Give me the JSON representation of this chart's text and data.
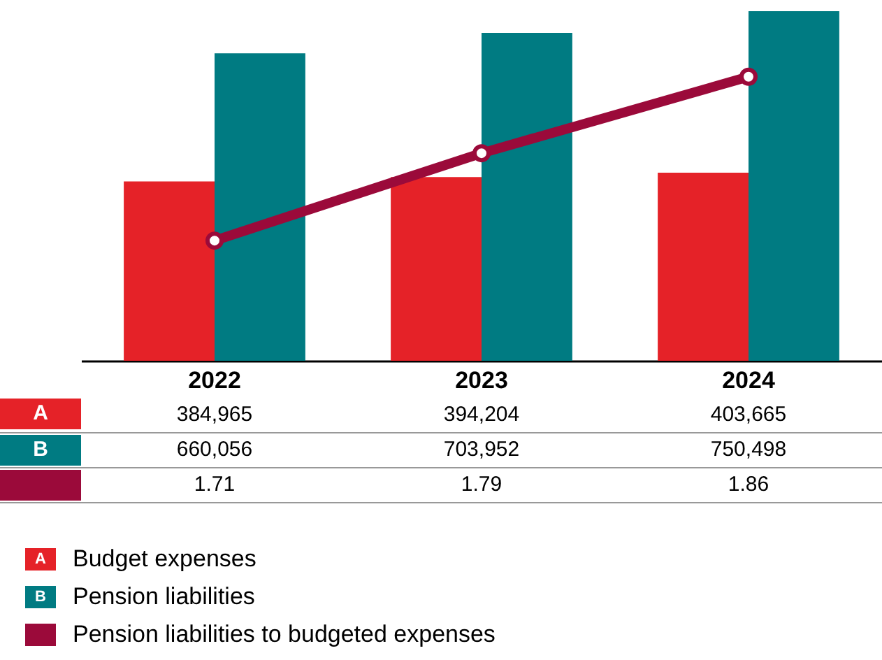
{
  "chart_data": {
    "type": "bar",
    "categories": [
      "2022",
      "2023",
      "2024"
    ],
    "series": [
      {
        "name": "Budget expenses",
        "color": "#e52228",
        "values": [
          384965,
          394204,
          403665
        ],
        "value_labels": [
          "384,965",
          "394,204",
          "403,665"
        ]
      },
      {
        "name": "Pension liabilities",
        "color": "#007b82",
        "values": [
          660056,
          703952,
          750498
        ],
        "value_labels": [
          "660,056",
          "703,952",
          "750,498"
        ]
      },
      {
        "name": "Pension liabilities to budgeted expenses",
        "type": "line",
        "axis": "y2",
        "color": "#9b0a3a",
        "values": [
          1.71,
          1.79,
          1.86
        ],
        "value_labels": [
          "1.71",
          "1.79",
          "1.86"
        ]
      }
    ],
    "y2lim": [
      1.6,
      1.92
    ],
    "marker": "circle",
    "legend": "bottom",
    "annotations": [
      "A",
      "B"
    ]
  }
}
